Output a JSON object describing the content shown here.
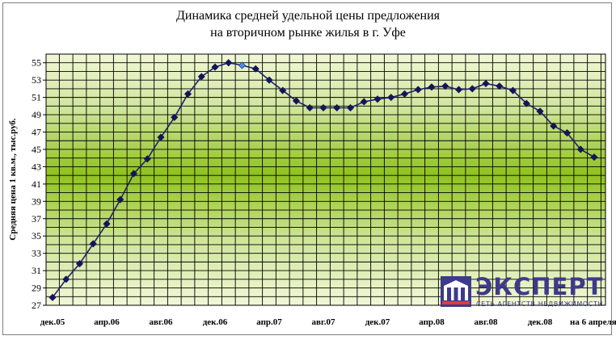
{
  "chart_data": {
    "type": "line",
    "title": [
      "Динамика средней удельной цены предложения",
      "на вторичном рынке жилья в г. Уфе"
    ],
    "ylabel": "Средняя цена 1 кв.м., тыс.руб.",
    "ylim": [
      27,
      56
    ],
    "yticks": [
      27,
      29,
      31,
      33,
      35,
      37,
      39,
      41,
      43,
      45,
      47,
      49,
      51,
      53,
      55
    ],
    "grid": true,
    "xtick_labels": [
      {
        "index": 0,
        "label": "дек.05"
      },
      {
        "index": 4,
        "label": "апр.06"
      },
      {
        "index": 8,
        "label": "авг.06"
      },
      {
        "index": 12,
        "label": "дек.06"
      },
      {
        "index": 16,
        "label": "апр.07"
      },
      {
        "index": 20,
        "label": "авг.07"
      },
      {
        "index": 24,
        "label": "дек.07"
      },
      {
        "index": 28,
        "label": "апр.08"
      },
      {
        "index": 32,
        "label": "авг.08"
      },
      {
        "index": 36,
        "label": "дек.08"
      },
      {
        "index": 40,
        "label": "на 6 апреля"
      }
    ],
    "highlight_index": 14,
    "colors": {
      "line": "#1f1f6b",
      "marker": "#14145a",
      "highlight_marker": "#4f8fe8",
      "grid": "#000000"
    },
    "series": [
      {
        "values": [
          27.9,
          30.0,
          31.8,
          34.1,
          36.4,
          39.2,
          42.2,
          43.9,
          46.4,
          48.7,
          51.4,
          53.4,
          54.5,
          55.0,
          54.7,
          54.3,
          53.0,
          51.8,
          50.6,
          49.8,
          49.8,
          49.8,
          49.8,
          50.5,
          50.8,
          51.0,
          51.4,
          51.9,
          52.2,
          52.3,
          51.9,
          52.0,
          52.6,
          52.3,
          51.8,
          50.3,
          49.4,
          47.7,
          46.9,
          45.0,
          44.1
        ]
      }
    ]
  },
  "logo": {
    "name": "ЭКСПЕРТ",
    "tagline": "СЕТЬ АГЕНТСТВ НЕДВИЖИМОСТИ"
  }
}
